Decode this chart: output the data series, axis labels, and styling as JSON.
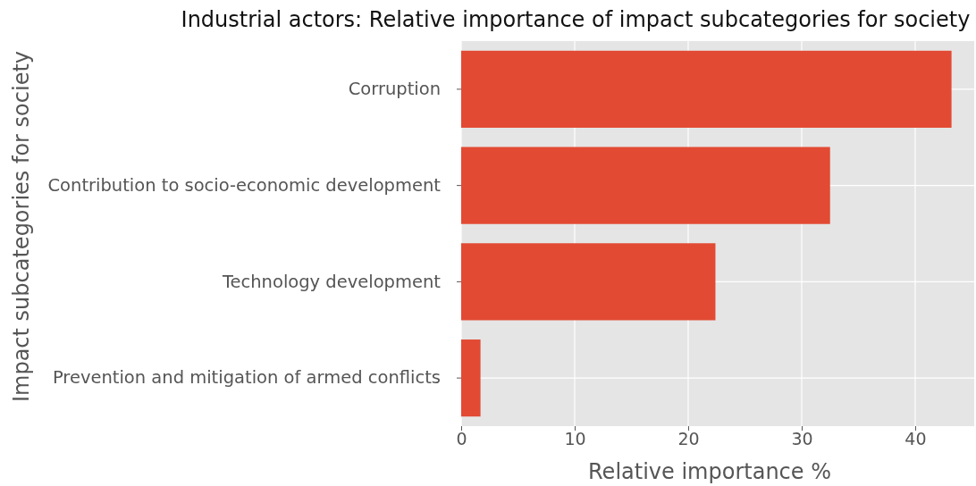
{
  "chart_data": {
    "type": "bar",
    "orientation": "horizontal",
    "title": "Industrial actors: Relative importance of impact subcategories for society",
    "xlabel": "Relative importance %",
    "ylabel": "Impact subcategories for society",
    "categories": [
      "Corruption",
      "Contribution to socio-economic development",
      "Technology development",
      "Prevention and mitigation of armed conflicts"
    ],
    "values": [
      43.2,
      32.5,
      22.4,
      1.7
    ],
    "color": "#e24a33",
    "xlim": [
      0,
      45.2
    ],
    "xticks": [
      0,
      10,
      20,
      30,
      40
    ],
    "grid": true
  }
}
